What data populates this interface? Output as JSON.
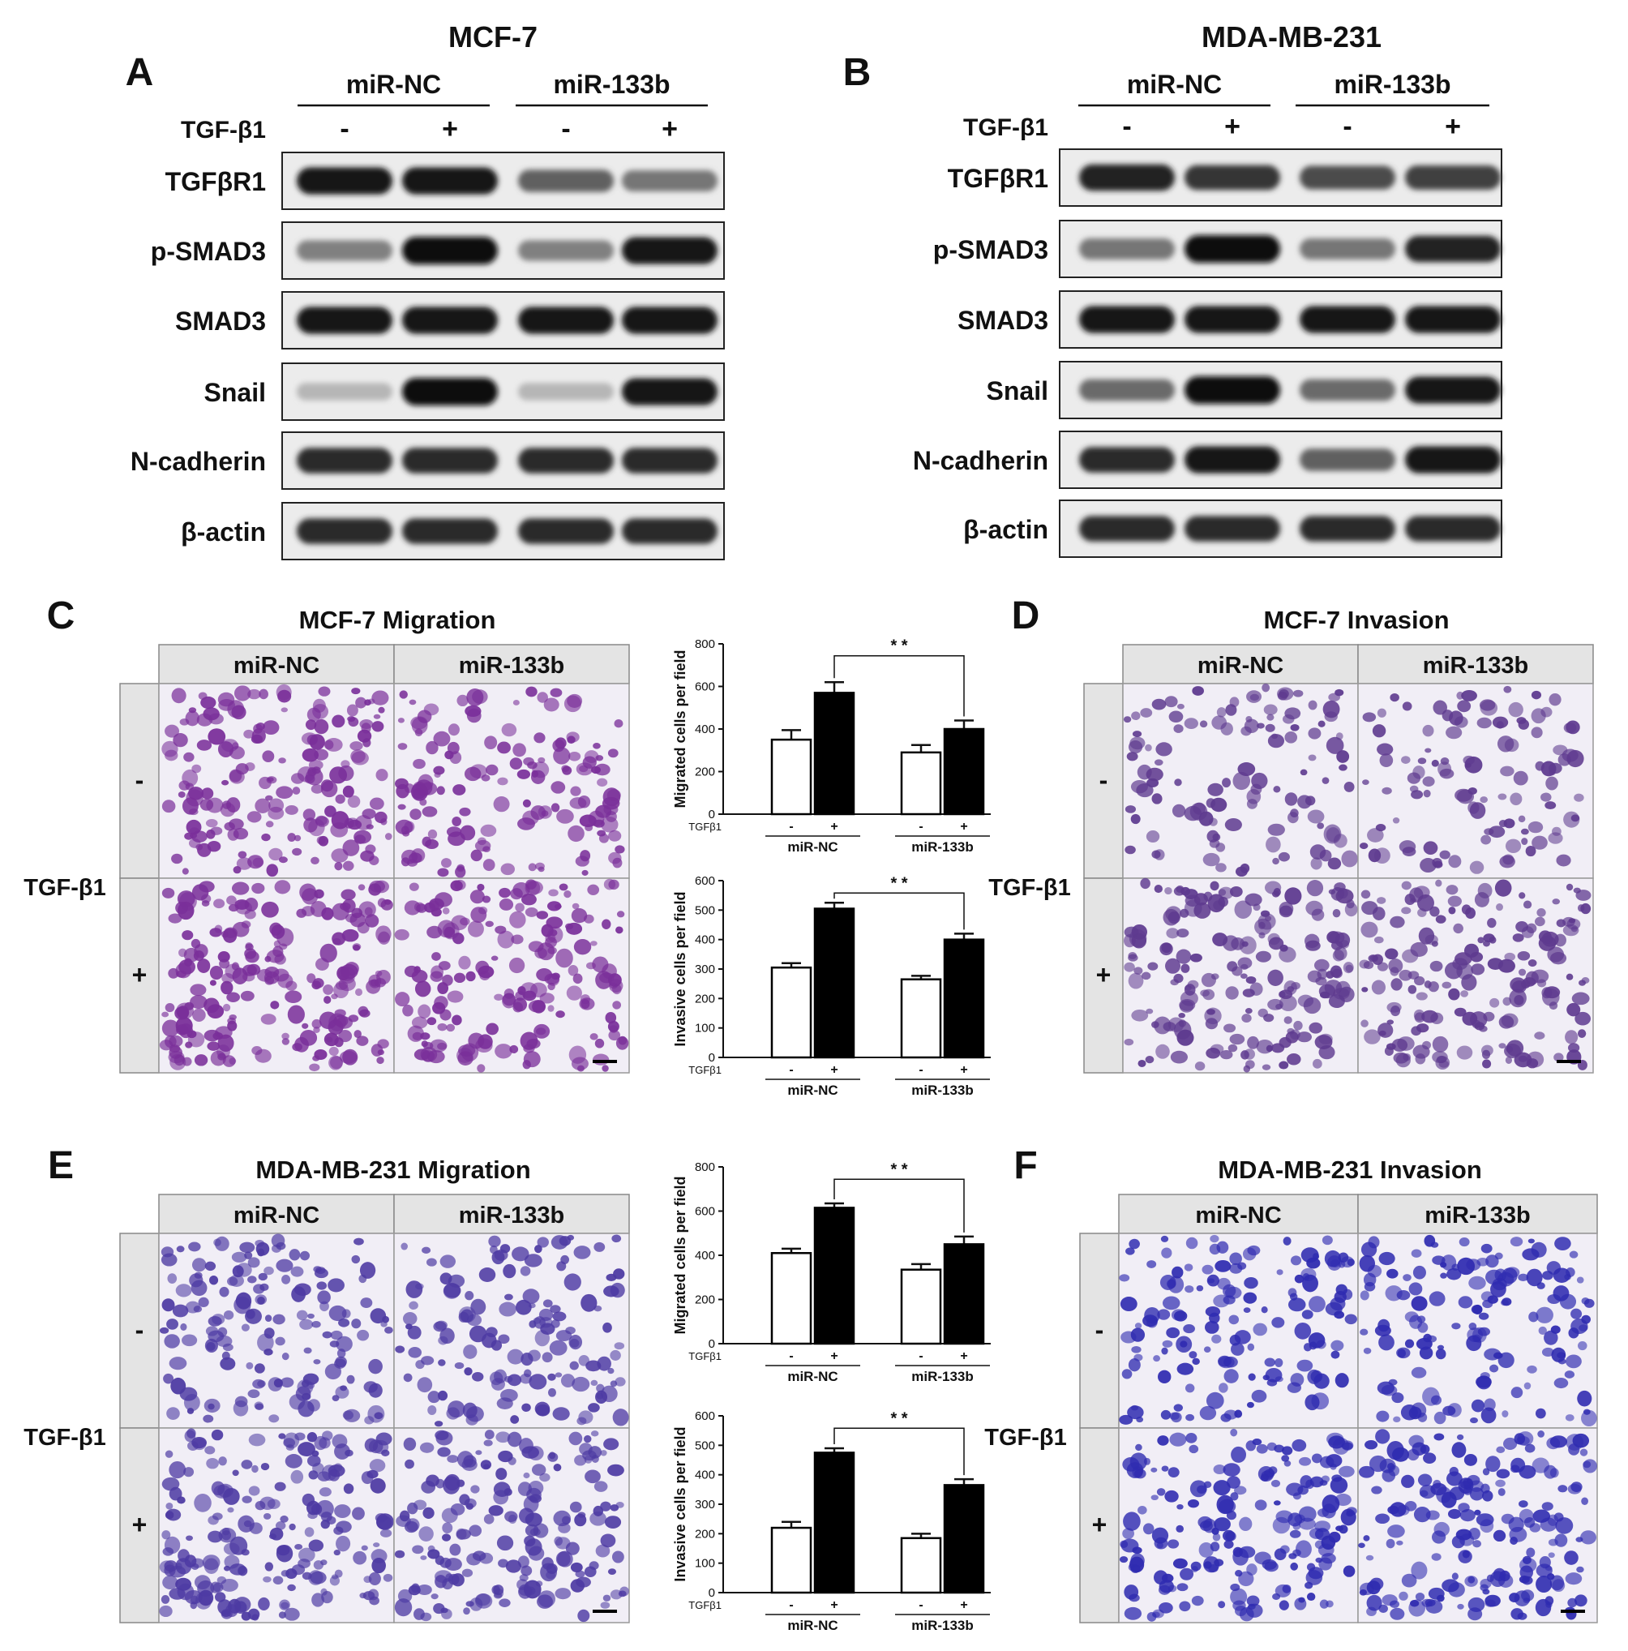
{
  "wb": [
    {
      "letter": "A",
      "title": "MCF-7",
      "groups": [
        "miR-NC",
        "miR-133b"
      ],
      "treatment_label": "TGF-β1",
      "lane_signs": [
        "-",
        "+",
        "-",
        "+"
      ],
      "bands": [
        {
          "label": "TGFβR1",
          "intensity": [
            0.95,
            0.95,
            0.6,
            0.5
          ]
        },
        {
          "label": "p-SMAD3",
          "intensity": [
            0.45,
            1.0,
            0.45,
            0.95
          ]
        },
        {
          "label": "SMAD3",
          "intensity": [
            0.95,
            0.95,
            0.95,
            0.95
          ]
        },
        {
          "label": "Snail",
          "intensity": [
            0.2,
            1.0,
            0.2,
            0.95
          ]
        },
        {
          "label": "N-cadherin",
          "intensity": [
            0.85,
            0.85,
            0.85,
            0.85
          ]
        },
        {
          "label": "β-actin",
          "intensity": [
            0.85,
            0.85,
            0.85,
            0.85
          ]
        }
      ]
    },
    {
      "letter": "B",
      "title": "MDA-MB-231",
      "groups": [
        "miR-NC",
        "miR-133b"
      ],
      "treatment_label": "TGF-β1",
      "lane_signs": [
        "-",
        "+",
        "-",
        "+"
      ],
      "bands": [
        {
          "label": "TGFβR1",
          "intensity": [
            0.9,
            0.8,
            0.7,
            0.75
          ]
        },
        {
          "label": "p-SMAD3",
          "intensity": [
            0.5,
            1.0,
            0.5,
            0.9
          ]
        },
        {
          "label": "SMAD3",
          "intensity": [
            0.95,
            0.95,
            0.95,
            0.95
          ]
        },
        {
          "label": "Snail",
          "intensity": [
            0.55,
            1.0,
            0.55,
            0.95
          ]
        },
        {
          "label": "N-cadherin",
          "intensity": [
            0.85,
            0.95,
            0.6,
            0.95
          ]
        },
        {
          "label": "β-actin",
          "intensity": [
            0.85,
            0.85,
            0.85,
            0.85
          ]
        }
      ]
    }
  ],
  "assays": [
    {
      "letter": "C",
      "title": "MCF-7 Migration",
      "cols": [
        "miR-NC",
        "miR-133b"
      ],
      "rows": [
        "-",
        "+"
      ],
      "side_label": "TGF-β1",
      "stain": "#7a2f9a",
      "density": [
        0.75,
        0.55,
        0.95,
        0.75
      ]
    },
    {
      "letter": "D",
      "title": "MCF-7 Invasion",
      "cols": [
        "miR-NC",
        "miR-133b"
      ],
      "rows": [
        "-",
        "+"
      ],
      "side_label": "TGF-β1",
      "stain": "#5e3a8f",
      "density": [
        0.35,
        0.3,
        0.8,
        0.75
      ]
    },
    {
      "letter": "E",
      "title": "MDA-MB-231 Migration",
      "cols": [
        "miR-NC",
        "miR-133b"
      ],
      "rows": [
        "-",
        "+"
      ],
      "side_label": "TGF-β1",
      "stain": "#4d3aa3",
      "density": [
        0.6,
        0.5,
        0.85,
        0.75
      ]
    },
    {
      "letter": "F",
      "title": "MDA-MB-231 Invasion",
      "cols": [
        "miR-NC",
        "miR-133b"
      ],
      "rows": [
        "-",
        "+"
      ],
      "side_label": "TGF-β1",
      "stain": "#2f2bb0",
      "density": [
        0.55,
        0.55,
        0.8,
        0.8
      ]
    }
  ],
  "chart_data": [
    {
      "type": "bar",
      "ylabel": "Migrated cells per field",
      "ylim": [
        0,
        800
      ],
      "yticks": [
        0,
        200,
        400,
        600,
        800
      ],
      "treatment_label": "TGFβ1",
      "signs": [
        "-",
        "+",
        "-",
        "+"
      ],
      "groups": [
        "miR-NC",
        "miR-133b"
      ],
      "values": [
        350,
        570,
        290,
        400
      ],
      "errors": [
        45,
        50,
        35,
        40
      ],
      "significance": "* *"
    },
    {
      "type": "bar",
      "ylabel": "Invasive cells per field",
      "ylim": [
        0,
        600
      ],
      "yticks": [
        0,
        100,
        200,
        300,
        400,
        500,
        600
      ],
      "treatment_label": "TGFβ1",
      "signs": [
        "-",
        "+",
        "-",
        "+"
      ],
      "groups": [
        "miR-NC",
        "miR-133b"
      ],
      "values": [
        305,
        505,
        265,
        400
      ],
      "errors": [
        15,
        20,
        12,
        20
      ],
      "significance": "* *"
    },
    {
      "type": "bar",
      "ylabel": "Migrated cells per field",
      "ylim": [
        0,
        800
      ],
      "yticks": [
        0,
        200,
        400,
        600,
        800
      ],
      "treatment_label": "TGFβ1",
      "signs": [
        "-",
        "+",
        "-",
        "+"
      ],
      "groups": [
        "miR-NC",
        "miR-133b"
      ],
      "values": [
        410,
        615,
        335,
        450
      ],
      "errors": [
        20,
        20,
        25,
        35
      ],
      "significance": "* *"
    },
    {
      "type": "bar",
      "ylabel": "Invasive cells per field",
      "ylim": [
        0,
        600
      ],
      "yticks": [
        0,
        100,
        200,
        300,
        400,
        500,
        600
      ],
      "treatment_label": "TGFβ1",
      "signs": [
        "-",
        "+",
        "-",
        "+"
      ],
      "groups": [
        "miR-NC",
        "miR-133b"
      ],
      "values": [
        220,
        475,
        185,
        365
      ],
      "errors": [
        20,
        15,
        15,
        20
      ],
      "significance": "* *"
    }
  ]
}
